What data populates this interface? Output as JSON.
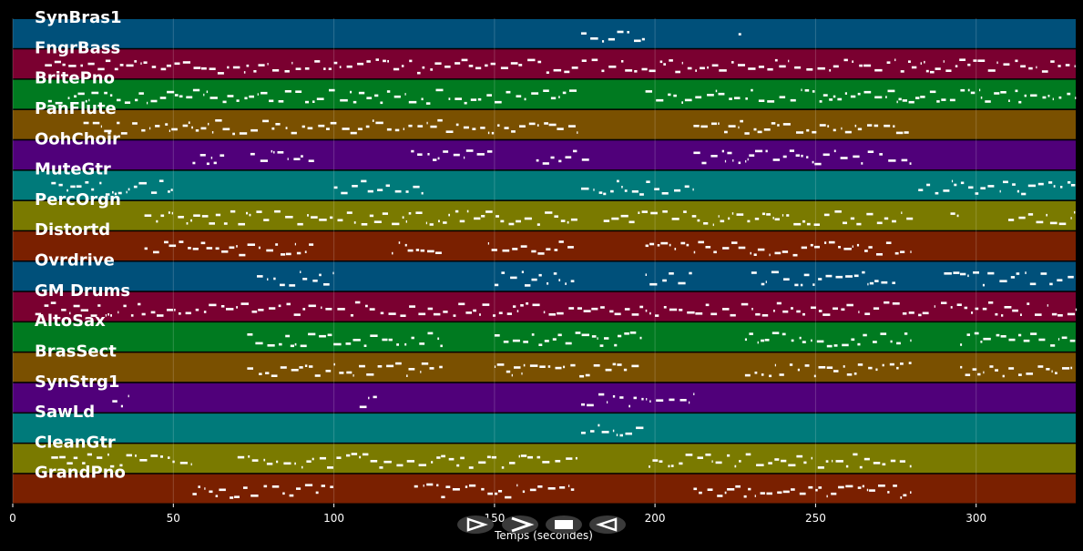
{
  "chart_data": {
    "type": "piano-roll",
    "xlabel": "Temps (secondes)",
    "xlim": [
      0,
      331
    ],
    "xticks": [
      0,
      50,
      100,
      150,
      200,
      250,
      300
    ],
    "grid": true,
    "tracks": [
      {
        "name": "SynBras1",
        "color": "#00507a",
        "segments": [
          [
            177,
            197
          ],
          [
            226,
            227
          ]
        ]
      },
      {
        "name": "FngrBass",
        "color": "#7a0030",
        "segments": [
          [
            10,
            331
          ]
        ]
      },
      {
        "name": "BritePno",
        "color": "#007a20",
        "segments": [
          [
            11,
            176
          ],
          [
            197,
            331
          ]
        ]
      },
      {
        "name": "PanFlute",
        "color": "#7a5000",
        "segments": [
          [
            22,
            176
          ],
          [
            212,
            280
          ]
        ]
      },
      {
        "name": "OohChoir",
        "color": "#50007a",
        "segments": [
          [
            56,
            66
          ],
          [
            74,
            94
          ],
          [
            124,
            150
          ],
          [
            163,
            180
          ],
          [
            212,
            280
          ]
        ]
      },
      {
        "name": "MuteGtr",
        "color": "#007a7a",
        "segments": [
          [
            12,
            50
          ],
          [
            100,
            128
          ],
          [
            177,
            212
          ],
          [
            282,
            331
          ]
        ]
      },
      {
        "name": "PercOrgn",
        "color": "#7a7a00",
        "segments": [
          [
            41,
            176
          ],
          [
            184,
            281
          ],
          [
            292,
            296
          ],
          [
            310,
            331
          ]
        ]
      },
      {
        "name": "Distortd",
        "color": "#7a2000",
        "segments": [
          [
            41,
            95
          ],
          [
            118,
            134
          ],
          [
            148,
            176
          ],
          [
            197,
            280
          ]
        ]
      },
      {
        "name": "Ovrdrive",
        "color": "#00507a",
        "segments": [
          [
            76,
            100
          ],
          [
            150,
            176
          ],
          [
            197,
            212
          ],
          [
            230,
            275
          ],
          [
            290,
            331
          ]
        ]
      },
      {
        "name": "GM Drums",
        "color": "#7a0030",
        "segments": [
          [
            7,
            331
          ]
        ]
      },
      {
        "name": "AltoSax",
        "color": "#007a20",
        "segments": [
          [
            73,
            134
          ],
          [
            150,
            196
          ],
          [
            228,
            280
          ],
          [
            295,
            331
          ]
        ]
      },
      {
        "name": "BrasSect",
        "color": "#7a5000",
        "segments": [
          [
            73,
            134
          ],
          [
            150,
            196
          ],
          [
            228,
            280
          ],
          [
            295,
            331
          ]
        ]
      },
      {
        "name": "SynStrg1",
        "color": "#50007a",
        "segments": [
          [
            31,
            36
          ],
          [
            108,
            114
          ],
          [
            177,
            212
          ]
        ]
      },
      {
        "name": "SawLd",
        "color": "#007a7a",
        "segments": [
          [
            177,
            197
          ]
        ]
      },
      {
        "name": "CleanGtr",
        "color": "#7a7a00",
        "segments": [
          [
            12,
            56
          ],
          [
            70,
            176
          ],
          [
            198,
            280
          ]
        ]
      },
      {
        "name": "GrandPno",
        "color": "#7a2000",
        "segments": [
          [
            56,
            100
          ],
          [
            125,
            176
          ],
          [
            212,
            280
          ]
        ]
      }
    ]
  },
  "controls": [
    {
      "name": "play-icon"
    },
    {
      "name": "forward-icon"
    },
    {
      "name": "stop-icon"
    },
    {
      "name": "rewind-icon"
    }
  ]
}
